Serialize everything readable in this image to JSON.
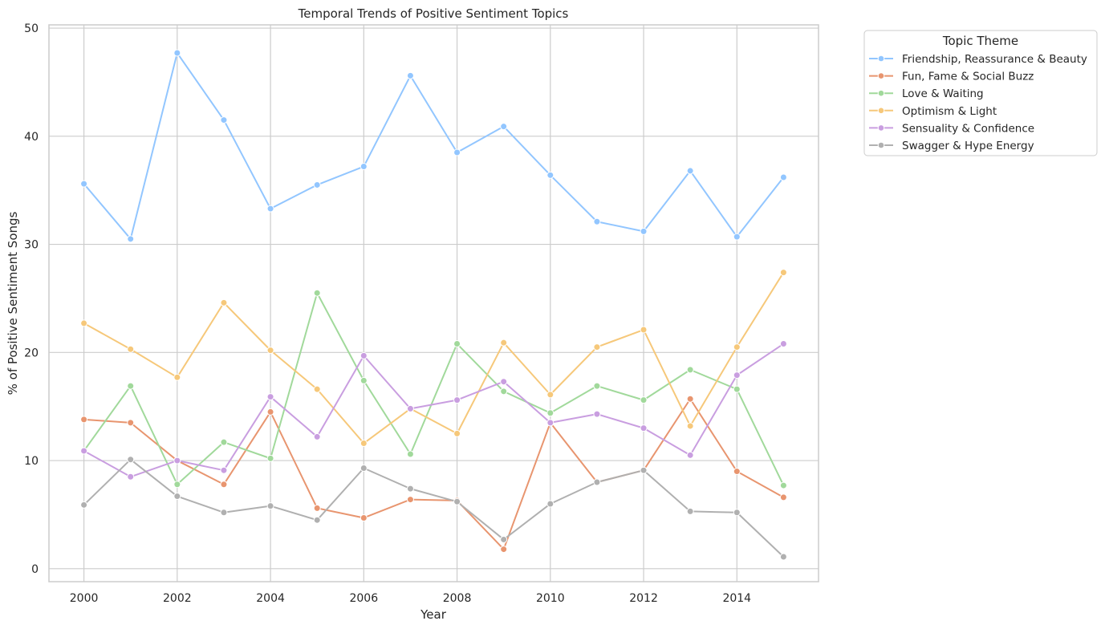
{
  "chart_data": {
    "type": "line",
    "title": "Temporal Trends of Positive Sentiment Topics",
    "xlabel": "Year",
    "ylabel": "% of Positive Sentiment Songs",
    "xlim": [
      1999.25,
      2015.75
    ],
    "ylim": [
      -1.2,
      50.3
    ],
    "x_ticks": [
      2000,
      2002,
      2004,
      2006,
      2008,
      2010,
      2012,
      2014
    ],
    "y_ticks": [
      0,
      10,
      20,
      30,
      40,
      50
    ],
    "grid": true,
    "legend": {
      "title": "Topic Theme",
      "placement": "outside-right-top"
    },
    "x": [
      2000,
      2001,
      2002,
      2003,
      2004,
      2005,
      2006,
      2007,
      2008,
      2009,
      2010,
      2011,
      2012,
      2013,
      2014,
      2015
    ],
    "series": [
      {
        "name": "Friendship, Reassurance & Beauty",
        "color": "#92c6ff",
        "values": [
          35.6,
          30.5,
          47.7,
          41.5,
          33.3,
          35.5,
          37.2,
          45.6,
          38.5,
          40.9,
          36.4,
          32.1,
          31.2,
          36.8,
          30.7,
          36.2
        ]
      },
      {
        "name": "Fun, Fame & Social Buzz",
        "color": "#e8956f",
        "values": [
          13.8,
          13.5,
          10.0,
          7.8,
          14.5,
          5.6,
          4.7,
          6.4,
          6.3,
          1.8,
          13.5,
          8.0,
          9.1,
          15.7,
          9.0,
          6.6
        ]
      },
      {
        "name": "Love & Waiting",
        "color": "#a1d99b",
        "values": [
          10.9,
          16.9,
          7.8,
          11.7,
          10.2,
          25.5,
          17.4,
          10.6,
          20.8,
          16.4,
          14.4,
          16.9,
          15.6,
          18.4,
          16.6,
          7.7
        ]
      },
      {
        "name": "Optimism & Light",
        "color": "#f6c87a",
        "values": [
          22.7,
          20.3,
          17.7,
          24.6,
          20.2,
          16.6,
          11.6,
          14.8,
          12.5,
          20.9,
          16.1,
          20.5,
          22.1,
          13.2,
          20.5,
          27.4
        ]
      },
      {
        "name": "Sensuality & Confidence",
        "color": "#c99ee0",
        "values": [
          10.9,
          8.5,
          10.0,
          9.1,
          15.9,
          12.2,
          19.7,
          14.8,
          15.6,
          17.3,
          13.5,
          14.3,
          13.0,
          10.5,
          17.9,
          20.8
        ]
      },
      {
        "name": "Swagger & Hype Energy",
        "color": "#b0b0b0",
        "values": [
          5.9,
          10.1,
          6.7,
          5.2,
          5.8,
          4.5,
          9.3,
          7.4,
          6.2,
          2.7,
          6.0,
          8.0,
          9.1,
          5.3,
          5.2,
          1.1
        ]
      }
    ]
  }
}
